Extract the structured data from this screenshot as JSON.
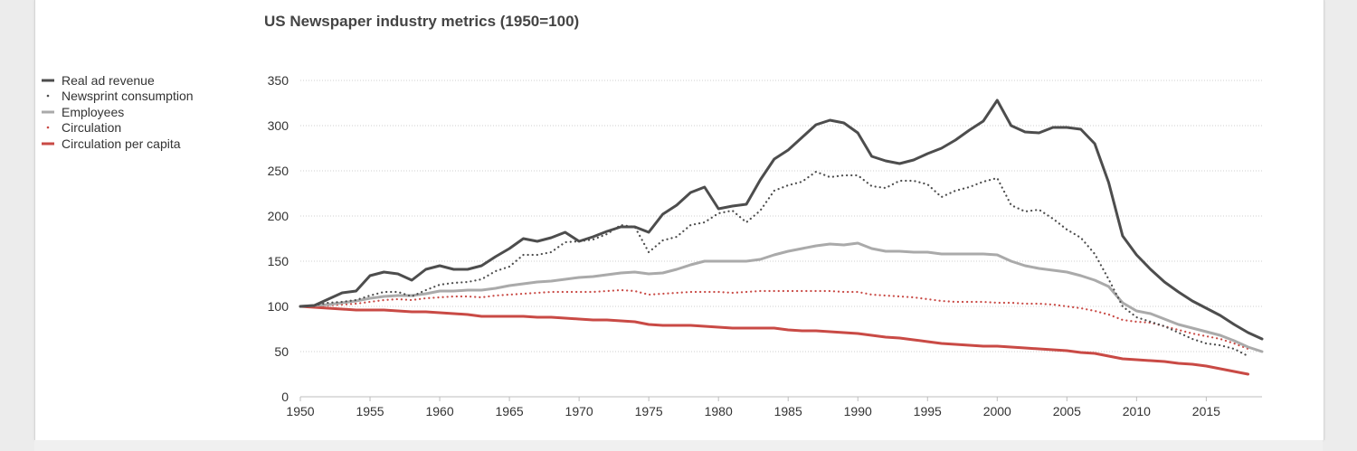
{
  "chart_data": {
    "type": "line",
    "title": "US Newspaper industry metrics (1950=100)",
    "xlabel": "",
    "ylabel": "",
    "xlim": [
      1950,
      2019
    ],
    "ylim": [
      0,
      350
    ],
    "yticks": [
      0,
      50,
      100,
      150,
      200,
      250,
      300,
      350
    ],
    "xticks": [
      1950,
      1955,
      1960,
      1965,
      1970,
      1975,
      1980,
      1985,
      1990,
      1995,
      2000,
      2005,
      2010,
      2015
    ],
    "grid": "horizontal dotted",
    "legend_position": "top-left",
    "series": [
      {
        "name": "Real ad revenue",
        "color": "#4d4d4d",
        "style": "solid",
        "x": [
          1950,
          1951,
          1952,
          1953,
          1954,
          1955,
          1956,
          1957,
          1958,
          1959,
          1960,
          1961,
          1962,
          1963,
          1964,
          1965,
          1966,
          1967,
          1968,
          1969,
          1970,
          1971,
          1972,
          1973,
          1974,
          1975,
          1976,
          1977,
          1978,
          1979,
          1980,
          1981,
          1982,
          1983,
          1984,
          1985,
          1986,
          1987,
          1988,
          1989,
          1990,
          1991,
          1992,
          1993,
          1994,
          1995,
          1996,
          1997,
          1998,
          1999,
          2000,
          2001,
          2002,
          2003,
          2004,
          2005,
          2006,
          2007,
          2008,
          2009,
          2010,
          2011,
          2012,
          2013,
          2014,
          2015,
          2016,
          2017,
          2018,
          2019
        ],
        "values": [
          100,
          101,
          108,
          115,
          117,
          134,
          138,
          136,
          129,
          141,
          145,
          141,
          141,
          145,
          155,
          164,
          175,
          172,
          176,
          182,
          172,
          177,
          183,
          188,
          188,
          182,
          202,
          212,
          226,
          232,
          208,
          211,
          213,
          240,
          263,
          273,
          287,
          301,
          306,
          303,
          292,
          266,
          261,
          258,
          262,
          269,
          275,
          284,
          295,
          305,
          328,
          300,
          293,
          292,
          298,
          298,
          296,
          280,
          237,
          178,
          157,
          141,
          127,
          116,
          106,
          98,
          90,
          80,
          71,
          64
        ]
      },
      {
        "name": "Newsprint consumption",
        "color": "#4d4d4d",
        "style": "dotted",
        "x": [
          1950,
          1951,
          1952,
          1953,
          1954,
          1955,
          1956,
          1957,
          1958,
          1959,
          1960,
          1961,
          1962,
          1963,
          1964,
          1965,
          1966,
          1967,
          1968,
          1969,
          1970,
          1971,
          1972,
          1973,
          1974,
          1975,
          1976,
          1977,
          1978,
          1979,
          1980,
          1981,
          1982,
          1983,
          1984,
          1985,
          1986,
          1987,
          1988,
          1989,
          1990,
          1991,
          1992,
          1993,
          1994,
          1995,
          1996,
          1997,
          1998,
          1999,
          2000,
          2001,
          2002,
          2003,
          2004,
          2005,
          2006,
          2007,
          2008,
          2009,
          2010,
          2011,
          2012,
          2013,
          2014,
          2015,
          2016,
          2017,
          2018
        ],
        "values": [
          100,
          101,
          104,
          105,
          107,
          112,
          116,
          116,
          111,
          118,
          124,
          126,
          127,
          130,
          139,
          144,
          157,
          157,
          160,
          171,
          172,
          174,
          180,
          190,
          188,
          160,
          173,
          177,
          190,
          193,
          203,
          206,
          193,
          206,
          228,
          234,
          238,
          249,
          243,
          245,
          245,
          233,
          231,
          239,
          239,
          235,
          221,
          228,
          232,
          238,
          242,
          212,
          205,
          207,
          197,
          185,
          176,
          158,
          130,
          100,
          88,
          83,
          78,
          71,
          64,
          59,
          57,
          53,
          45
        ]
      },
      {
        "name": "Employees",
        "color": "#aaaaaa",
        "style": "solid",
        "x": [
          1950,
          1951,
          1952,
          1953,
          1954,
          1955,
          1956,
          1957,
          1958,
          1959,
          1960,
          1961,
          1962,
          1963,
          1964,
          1965,
          1966,
          1967,
          1968,
          1969,
          1970,
          1971,
          1972,
          1973,
          1974,
          1975,
          1976,
          1977,
          1978,
          1979,
          1980,
          1981,
          1982,
          1983,
          1984,
          1985,
          1986,
          1987,
          1988,
          1989,
          1990,
          1991,
          1992,
          1993,
          1994,
          1995,
          1996,
          1997,
          1998,
          1999,
          2000,
          2001,
          2002,
          2003,
          2004,
          2005,
          2006,
          2007,
          2008,
          2009,
          2010,
          2011,
          2012,
          2013,
          2014,
          2015,
          2016,
          2017,
          2018,
          2019
        ],
        "values": [
          100,
          101,
          102,
          104,
          106,
          109,
          111,
          112,
          112,
          114,
          117,
          117,
          118,
          118,
          120,
          123,
          125,
          127,
          128,
          130,
          132,
          133,
          135,
          137,
          138,
          136,
          137,
          141,
          146,
          150,
          150,
          150,
          150,
          152,
          157,
          161,
          164,
          167,
          169,
          168,
          170,
          164,
          161,
          161,
          160,
          160,
          158,
          158,
          158,
          158,
          157,
          150,
          145,
          142,
          140,
          138,
          134,
          129,
          122,
          104,
          95,
          92,
          86,
          80,
          76,
          72,
          68,
          62,
          55,
          50
        ]
      },
      {
        "name": "Circulation",
        "color": "#c94a45",
        "style": "dotted",
        "x": [
          1950,
          1951,
          1952,
          1953,
          1954,
          1955,
          1956,
          1957,
          1958,
          1959,
          1960,
          1961,
          1962,
          1963,
          1964,
          1965,
          1966,
          1967,
          1968,
          1969,
          1970,
          1971,
          1972,
          1973,
          1974,
          1975,
          1976,
          1977,
          1978,
          1979,
          1980,
          1981,
          1982,
          1983,
          1984,
          1985,
          1986,
          1987,
          1988,
          1989,
          1990,
          1991,
          1992,
          1993,
          1994,
          1995,
          1996,
          1997,
          1998,
          1999,
          2000,
          2001,
          2002,
          2003,
          2004,
          2005,
          2006,
          2007,
          2008,
          2009,
          2010,
          2011,
          2012,
          2013,
          2014,
          2015,
          2016,
          2017,
          2018
        ],
        "values": [
          100,
          100,
          101,
          102,
          103,
          105,
          107,
          108,
          107,
          109,
          110,
          111,
          111,
          110,
          112,
          113,
          114,
          115,
          116,
          116,
          116,
          116,
          117,
          118,
          117,
          113,
          114,
          115,
          116,
          116,
          116,
          115,
          116,
          117,
          117,
          117,
          117,
          117,
          117,
          116,
          116,
          113,
          112,
          111,
          110,
          108,
          106,
          105,
          105,
          105,
          104,
          104,
          103,
          103,
          102,
          100,
          98,
          95,
          91,
          85,
          83,
          82,
          78,
          74,
          70,
          67,
          64,
          59,
          53
        ]
      },
      {
        "name": "Circulation per capita",
        "color": "#c94a45",
        "style": "solid",
        "x": [
          1950,
          1951,
          1952,
          1953,
          1954,
          1955,
          1956,
          1957,
          1958,
          1959,
          1960,
          1961,
          1962,
          1963,
          1964,
          1965,
          1966,
          1967,
          1968,
          1969,
          1970,
          1971,
          1972,
          1973,
          1974,
          1975,
          1976,
          1977,
          1978,
          1979,
          1980,
          1981,
          1982,
          1983,
          1984,
          1985,
          1986,
          1987,
          1988,
          1989,
          1990,
          1991,
          1992,
          1993,
          1994,
          1995,
          1996,
          1997,
          1998,
          1999,
          2000,
          2001,
          2002,
          2003,
          2004,
          2005,
          2006,
          2007,
          2008,
          2009,
          2010,
          2011,
          2012,
          2013,
          2014,
          2015,
          2016,
          2017,
          2018
        ],
        "values": [
          100,
          99,
          98,
          97,
          96,
          96,
          96,
          95,
          94,
          94,
          93,
          92,
          91,
          89,
          89,
          89,
          89,
          88,
          88,
          87,
          86,
          85,
          85,
          84,
          83,
          80,
          79,
          79,
          79,
          78,
          77,
          76,
          76,
          76,
          76,
          74,
          73,
          73,
          72,
          71,
          70,
          68,
          66,
          65,
          63,
          61,
          59,
          58,
          57,
          56,
          56,
          55,
          54,
          53,
          52,
          51,
          49,
          48,
          45,
          42,
          41,
          40,
          39,
          37,
          36,
          34,
          31,
          28,
          25
        ]
      }
    ]
  }
}
